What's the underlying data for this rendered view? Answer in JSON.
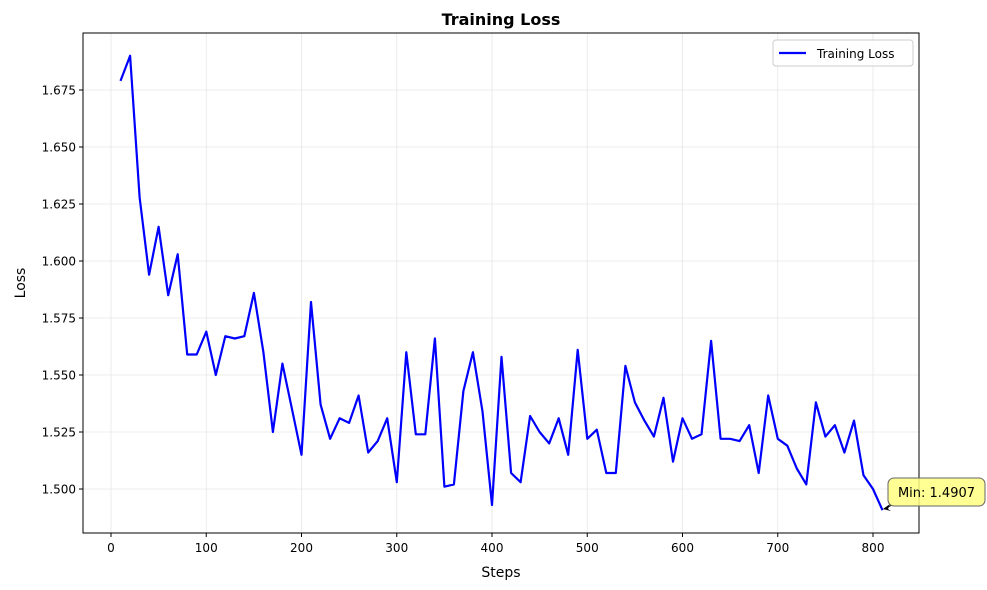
{
  "chart_data": {
    "type": "line",
    "title": "Training Loss",
    "xlabel": "Steps",
    "ylabel": "Loss",
    "xlim": [
      -30,
      848
    ],
    "ylim": [
      1.4825,
      1.6955
    ],
    "grid": true,
    "legend_position": "upper right",
    "x_ticks": [
      0,
      100,
      200,
      300,
      400,
      500,
      600,
      700,
      800
    ],
    "x_tick_labels": [
      "0",
      "100",
      "200",
      "300",
      "400",
      "500",
      "600",
      "700",
      "800"
    ],
    "y_ticks": [
      1.5,
      1.525,
      1.55,
      1.575,
      1.6,
      1.625,
      1.65,
      1.675
    ],
    "y_tick_labels": [
      "1.500",
      "1.525",
      "1.550",
      "1.575",
      "1.600",
      "1.625",
      "1.650",
      "1.675"
    ],
    "series": [
      {
        "name": "Training Loss",
        "color": "#0000ff",
        "x": [
          10,
          20,
          30,
          40,
          50,
          60,
          70,
          80,
          90,
          100,
          110,
          120,
          130,
          140,
          150,
          160,
          170,
          180,
          190,
          200,
          210,
          220,
          230,
          240,
          250,
          260,
          270,
          280,
          290,
          300,
          310,
          320,
          330,
          340,
          350,
          360,
          370,
          380,
          390,
          400,
          410,
          420,
          430,
          440,
          450,
          460,
          470,
          480,
          490,
          500,
          510,
          520,
          530,
          540,
          550,
          560,
          570,
          580,
          590,
          600,
          610,
          620,
          630,
          640,
          650,
          660,
          670,
          680,
          690,
          700,
          710,
          720,
          730,
          740,
          750,
          760,
          770,
          780,
          790,
          800,
          810
        ],
        "values": [
          1.679,
          1.69,
          1.628,
          1.594,
          1.615,
          1.585,
          1.603,
          1.559,
          1.559,
          1.569,
          1.55,
          1.567,
          1.566,
          1.567,
          1.586,
          1.56,
          1.525,
          1.555,
          1.535,
          1.515,
          1.582,
          1.537,
          1.522,
          1.531,
          1.529,
          1.541,
          1.516,
          1.521,
          1.531,
          1.503,
          1.56,
          1.524,
          1.524,
          1.566,
          1.501,
          1.502,
          1.543,
          1.56,
          1.534,
          1.493,
          1.558,
          1.507,
          1.503,
          1.532,
          1.525,
          1.52,
          1.531,
          1.515,
          1.561,
          1.522,
          1.526,
          1.507,
          1.507,
          1.554,
          1.538,
          1.53,
          1.523,
          1.54,
          1.512,
          1.531,
          1.522,
          1.524,
          1.565,
          1.522,
          1.522,
          1.521,
          1.528,
          1.507,
          1.541,
          1.522,
          1.519,
          1.509,
          1.502,
          1.538,
          1.523,
          1.528,
          1.516,
          1.53,
          1.506,
          1.5,
          1.4907
        ]
      }
    ],
    "annotations": [
      {
        "text": "Min: 1.4907",
        "x": 810,
        "y": 1.4907,
        "style": "yellow rounded box with arrow"
      }
    ]
  },
  "legend": {
    "entries": [
      {
        "label": "Training Loss",
        "color": "#0000ff"
      }
    ]
  },
  "colors": {
    "line": "#0000ff",
    "grid": "#e6e6e6",
    "annotation_fill": "#ffff80",
    "annotation_border": "#666666"
  }
}
